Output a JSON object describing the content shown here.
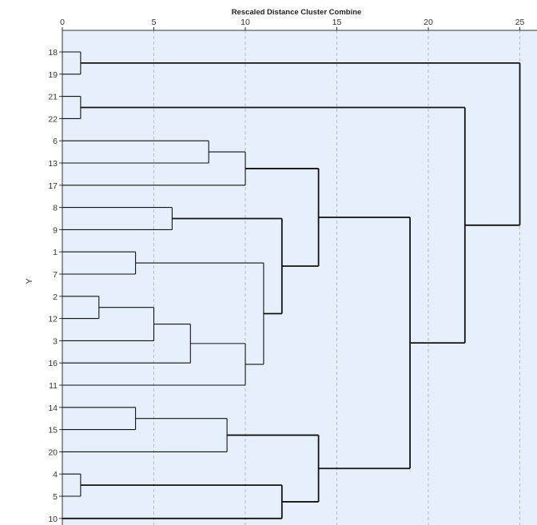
{
  "chart_data": {
    "type": "dendrogram",
    "title": "Rescaled Distance Cluster Combine",
    "ylabel": "Y",
    "x_ticks": [
      0,
      5,
      10,
      15,
      20,
      25
    ],
    "xlim": [
      0,
      25
    ],
    "grid": true,
    "leaf_order": [
      "18",
      "19",
      "21",
      "22",
      "6",
      "13",
      "17",
      "8",
      "9",
      "1",
      "7",
      "2",
      "12",
      "3",
      "16",
      "11",
      "14",
      "15",
      "20",
      "4",
      "5",
      "10"
    ],
    "merges": [
      {
        "id": "c1",
        "left": "18",
        "right": "19",
        "distance": 1
      },
      {
        "id": "c2",
        "left": "21",
        "right": "22",
        "distance": 1
      },
      {
        "id": "c3",
        "left": "4",
        "right": "5",
        "distance": 1
      },
      {
        "id": "c4",
        "left": "2",
        "right": "12",
        "distance": 2
      },
      {
        "id": "c5",
        "left": "1",
        "right": "7",
        "distance": 4
      },
      {
        "id": "c6",
        "left": "14",
        "right": "15",
        "distance": 4
      },
      {
        "id": "c7",
        "left": "c4",
        "right": "3",
        "distance": 5
      },
      {
        "id": "c8",
        "left": "8",
        "right": "9",
        "distance": 6
      },
      {
        "id": "c9",
        "left": "c7",
        "right": "16",
        "distance": 7
      },
      {
        "id": "c10",
        "left": "6",
        "right": "13",
        "distance": 8
      },
      {
        "id": "c11",
        "left": "c6",
        "right": "20",
        "distance": 9
      },
      {
        "id": "c12",
        "left": "c10",
        "right": "17",
        "distance": 10
      },
      {
        "id": "c13",
        "left": "c9",
        "right": "11",
        "distance": 10
      },
      {
        "id": "c14",
        "left": "c5",
        "right": "c13",
        "distance": 11
      },
      {
        "id": "c15",
        "left": "c8",
        "right": "c14",
        "distance": 12
      },
      {
        "id": "c16",
        "left": "c3",
        "right": "10",
        "distance": 12
      },
      {
        "id": "c17",
        "left": "c12",
        "right": "c15",
        "distance": 14
      },
      {
        "id": "c18",
        "left": "c11",
        "right": "c16",
        "distance": 14
      },
      {
        "id": "c19",
        "left": "c17",
        "right": "c18",
        "distance": 19
      },
      {
        "id": "c20",
        "left": "c2",
        "right": "c19",
        "distance": 22
      },
      {
        "id": "c21",
        "left": "c1",
        "right": "c20",
        "distance": 25
      }
    ]
  },
  "colors": {
    "plot_background": "#e6f0fc",
    "link": "#111111",
    "grid": "#b8bcc4",
    "axis": "#333333"
  }
}
